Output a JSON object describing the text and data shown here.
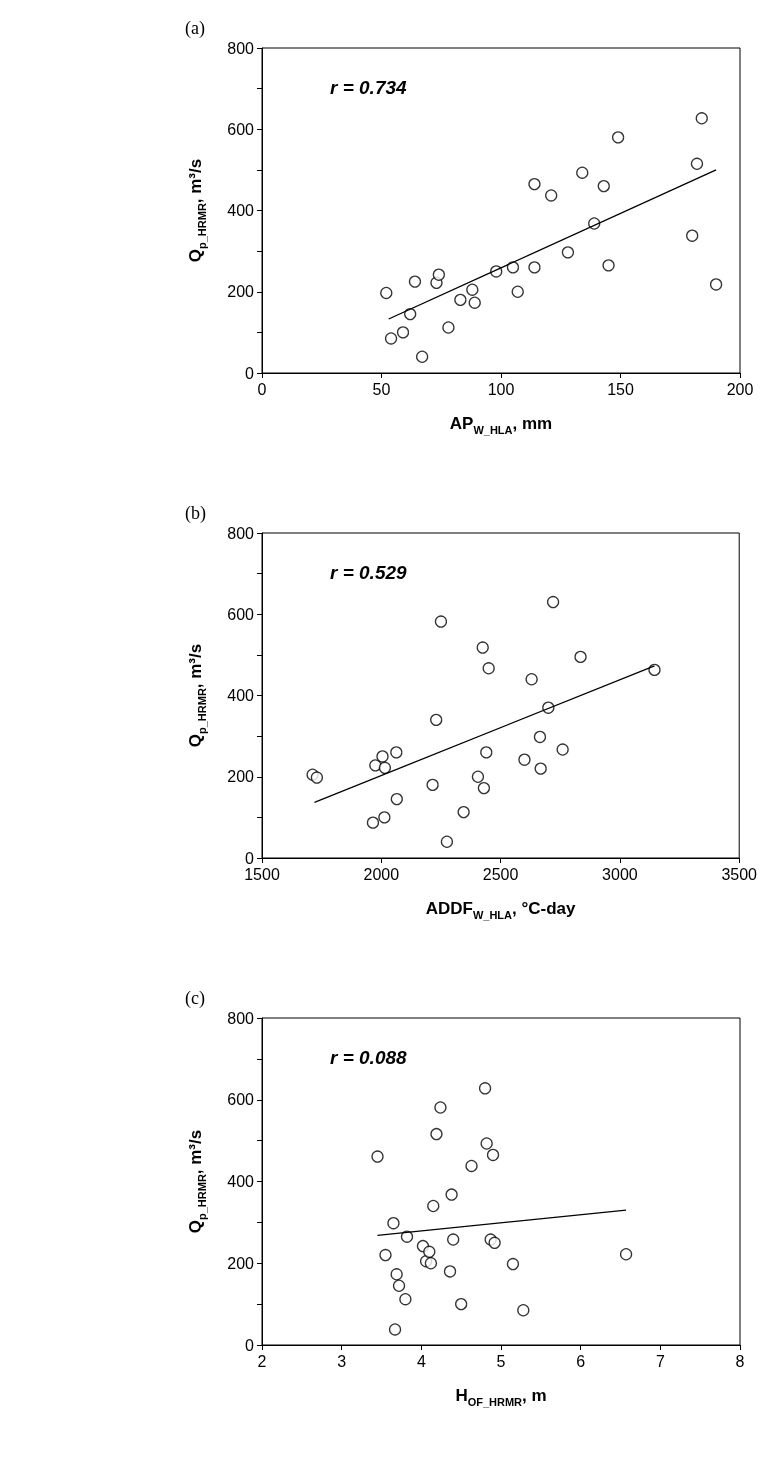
{
  "chart_data": [
    {
      "type": "scatter",
      "title": "(a)",
      "xlabel": "AP$_{W_HLA}$, mm",
      "ylabel": "Q$_{p_HRMR}$, m³/s",
      "annotations": [
        "r = 0.734"
      ],
      "marker": "circle",
      "grid": false,
      "xlim": [
        0,
        200
      ],
      "xticks": [
        0,
        50,
        100,
        150,
        200
      ],
      "ylim": [
        0,
        800
      ],
      "yticks": [
        0,
        {
          "value": 100,
          "label": null
        },
        200,
        {
          "value": 300,
          "label": null
        },
        400,
        {
          "value": 500,
          "label": null
        },
        600,
        {
          "value": 700,
          "label": null
        },
        800
      ],
      "series": [
        {
          "color": "#000000",
          "x": [
            52,
            54,
            59,
            62,
            64,
            67,
            73,
            74,
            78,
            83,
            88,
            89,
            98,
            105,
            107,
            114,
            114,
            121,
            128,
            134,
            139,
            143,
            145,
            149,
            180,
            182,
            184,
            190
          ],
          "values": [
            197,
            85,
            100,
            145,
            225,
            40,
            222,
            242,
            112,
            180,
            205,
            173,
            250,
            260,
            200,
            260,
            465,
            437,
            297,
            493,
            368,
            460,
            265,
            580,
            338,
            515,
            627,
            218
          ]
        },
        {
          "type": "line",
          "marker": "none",
          "color": "#000000",
          "x": [
            53,
            190
          ],
          "values": [
            133,
            500
          ]
        }
      ]
    },
    {
      "type": "scatter",
      "title": "(b)",
      "xlabel": "ADDF$_{W_HLA}$, °C-day",
      "ylabel": "Q$_{p_HRMR}$, m³/s",
      "annotations": [
        "r = 0.529"
      ],
      "marker": "circle",
      "grid": false,
      "xlim": [
        1500,
        3500
      ],
      "xticks": [
        1500,
        2000,
        2500,
        3000,
        3500
      ],
      "ylim": [
        0,
        800
      ],
      "yticks": [
        0,
        {
          "value": 100,
          "label": null
        },
        200,
        {
          "value": 300,
          "label": null
        },
        400,
        {
          "value": 500,
          "label": null
        },
        600,
        {
          "value": 700,
          "label": null
        },
        800
      ],
      "series": [
        {
          "color": "#000000",
          "x": [
            1712,
            1730,
            1965,
            1975,
            2005,
            2013,
            2015,
            2063,
            2065,
            2215,
            2230,
            2250,
            2275,
            2345,
            2405,
            2425,
            2430,
            2440,
            2450,
            2600,
            2630,
            2665,
            2668,
            2700,
            2720,
            2760,
            2835,
            3145
          ],
          "values": [
            205,
            198,
            87,
            228,
            250,
            100,
            222,
            260,
            145,
            180,
            340,
            582,
            40,
            113,
            200,
            518,
            172,
            260,
            467,
            242,
            440,
            298,
            220,
            370,
            630,
            267,
            495,
            463
          ]
        },
        {
          "type": "line",
          "marker": "none",
          "color": "#000000",
          "x": [
            1720,
            3145
          ],
          "values": [
            137,
            473
          ]
        }
      ]
    },
    {
      "type": "scatter",
      "title": "(c)",
      "xlabel": "H$_{OF_HRMR}$, m",
      "ylabel": "Q$_{p_HRMR}$, m³/s",
      "annotations": [
        "r = 0.088"
      ],
      "marker": "circle",
      "grid": false,
      "xlim": [
        2,
        8
      ],
      "xticks": [
        2,
        3,
        4,
        5,
        6,
        7,
        8
      ],
      "ylim": [
        0,
        800
      ],
      "yticks": [
        0,
        {
          "value": 100,
          "label": null
        },
        200,
        {
          "value": 300,
          "label": null
        },
        400,
        {
          "value": 500,
          "label": null
        },
        600,
        {
          "value": 700,
          "label": null
        },
        800
      ],
      "series": [
        {
          "color": "#000000",
          "x": [
            3.45,
            3.55,
            3.65,
            3.67,
            3.69,
            3.72,
            3.8,
            3.82,
            4.02,
            4.06,
            4.1,
            4.12,
            4.15,
            4.19,
            4.24,
            4.36,
            4.38,
            4.4,
            4.5,
            4.63,
            4.8,
            4.82,
            4.87,
            4.9,
            4.92,
            5.15,
            5.28,
            6.57
          ],
          "values": [
            461,
            220,
            298,
            38,
            173,
            145,
            112,
            265,
            242,
            205,
            228,
            200,
            340,
            516,
            581,
            180,
            368,
            258,
            100,
            438,
            628,
            493,
            258,
            465,
            250,
            198,
            85,
            222
          ]
        },
        {
          "type": "line",
          "marker": "none",
          "color": "#000000",
          "x": [
            3.45,
            6.57
          ],
          "values": [
            268,
            330
          ]
        }
      ]
    }
  ]
}
